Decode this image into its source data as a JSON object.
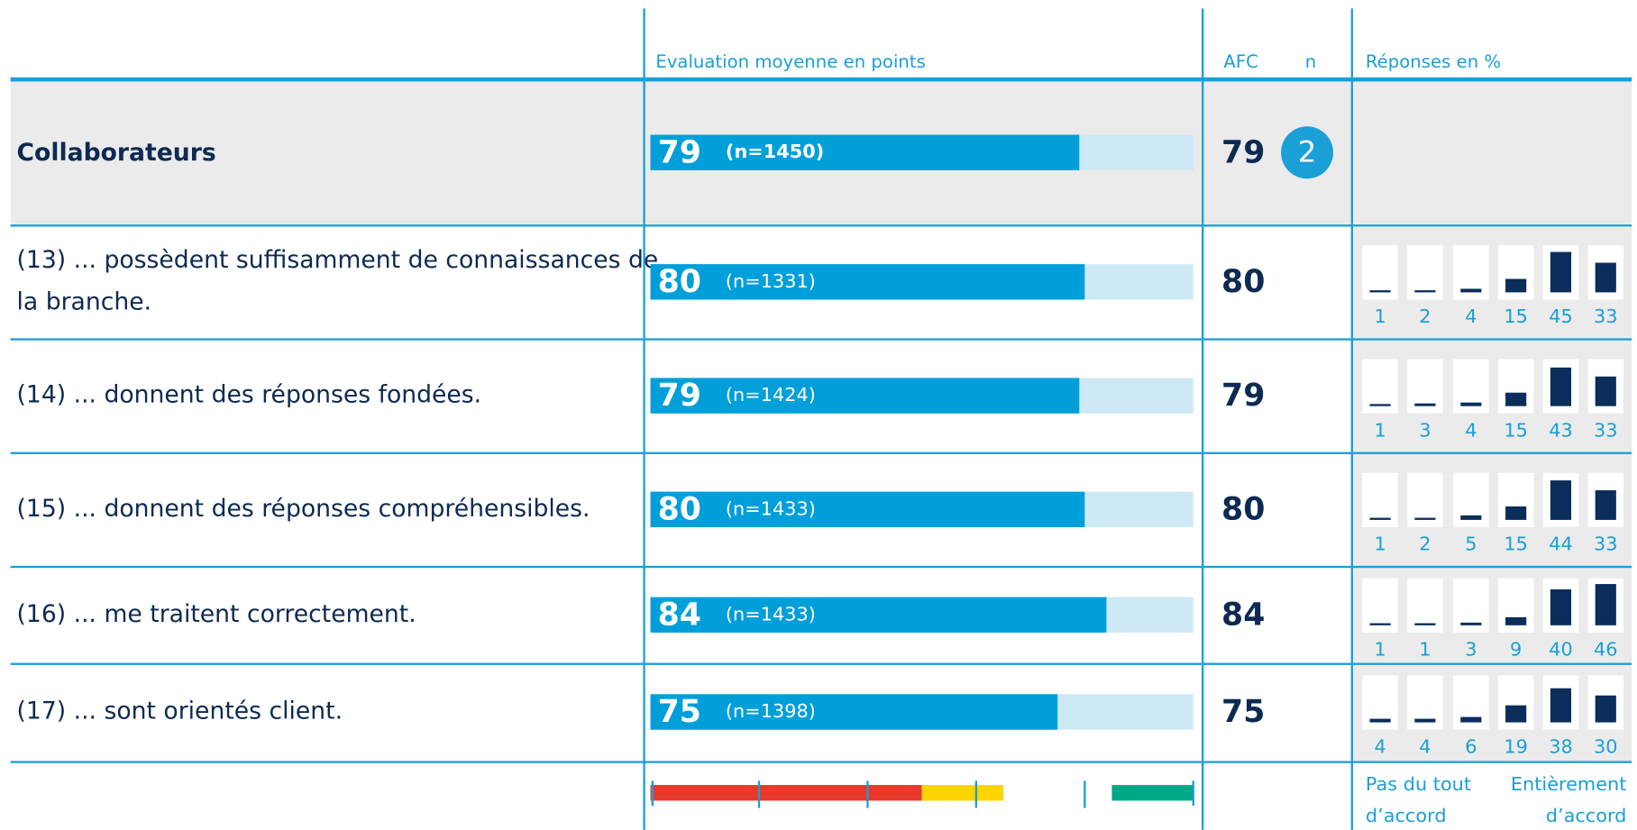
{
  "header": {
    "evaluation": "Evaluation moyenne en points",
    "afc": "AFC",
    "n": "n",
    "responses": "Réponses en %"
  },
  "scale": [
    0,
    100
  ],
  "response_scale": [
    0,
    50
  ],
  "summary": {
    "label": "Collaborateurs",
    "score": 79,
    "n_label": "(n=1450)",
    "afc": 79,
    "badge": "2"
  },
  "rows": [
    {
      "label": [
        "(13) ... possèdent suffisamment de connaissances de",
        "la branche."
      ],
      "score": 80,
      "n_label": "(n=1331)",
      "afc": 80,
      "responses": [
        1,
        2,
        4,
        15,
        45,
        33
      ]
    },
    {
      "label": [
        "(14) ... donnent des réponses fondées."
      ],
      "score": 79,
      "n_label": "(n=1424)",
      "afc": 79,
      "responses": [
        1,
        3,
        4,
        15,
        43,
        33
      ]
    },
    {
      "label": [
        "(15) ... donnent des réponses compréhensibles."
      ],
      "score": 80,
      "n_label": "(n=1433)",
      "afc": 80,
      "responses": [
        1,
        2,
        5,
        15,
        44,
        33
      ]
    },
    {
      "label": [
        "(16) ... me traitent correctement."
      ],
      "score": 84,
      "n_label": "(n=1433)",
      "afc": 84,
      "responses": [
        1,
        1,
        3,
        9,
        40,
        46
      ]
    },
    {
      "label": [
        "(17) ... sont orientés client."
      ],
      "score": 75,
      "n_label": "(n=1398)",
      "afc": 75,
      "responses": [
        4,
        4,
        6,
        19,
        38,
        30
      ]
    }
  ],
  "legend": {
    "segments": [
      {
        "from": 0,
        "to": 50,
        "color": "#e8392b"
      },
      {
        "from": 50,
        "to": 65,
        "color": "#ffd400"
      },
      {
        "from": 85,
        "to": 100,
        "color": "#00a88a"
      }
    ],
    "ticks": [
      20,
      40,
      60,
      80
    ],
    "left_label": [
      "Pas du tout",
      "d’accord"
    ],
    "right_label": [
      "Entièrement",
      "d’accord"
    ]
  }
}
